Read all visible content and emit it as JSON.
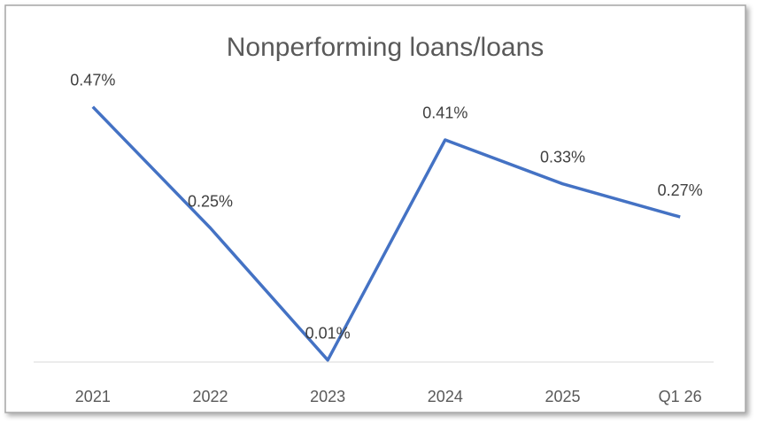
{
  "chart_data": {
    "type": "line",
    "title": "Nonperforming loans/loans",
    "categories": [
      "2021",
      "2022",
      "2023",
      "2024",
      "2025",
      "Q1 26"
    ],
    "values": [
      0.47,
      0.25,
      0.01,
      0.41,
      0.33,
      0.27
    ],
    "value_labels": [
      "0.47%",
      "0.25%",
      "0.01%",
      "0.41%",
      "0.33%",
      "0.27%"
    ],
    "color": "#4472c4",
    "ylim": [
      0,
      0.5
    ]
  }
}
